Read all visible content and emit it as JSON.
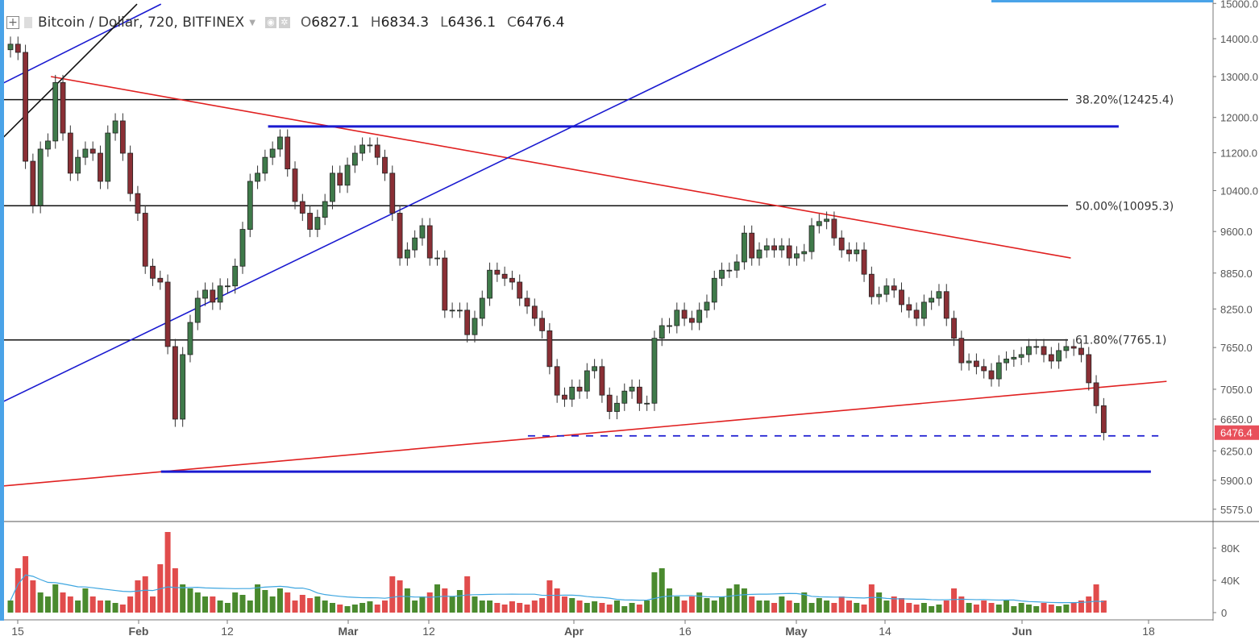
{
  "header": {
    "symbol": "Bitcoin / Dollar, 720, BITFINEX",
    "ohlc": [
      {
        "key": "O",
        "value": "6827.1"
      },
      {
        "key": "H",
        "value": "6834.3"
      },
      {
        "key": "L",
        "value": "6436.1"
      },
      {
        "key": "C",
        "value": "6476.4"
      }
    ],
    "icons": [
      "add-compare-icon",
      "symbol-flag-icon",
      "dropdown-caret-icon",
      "visibility-icon",
      "settings-gear-icon"
    ]
  },
  "chart_data": {
    "type": "candlestick",
    "scale": "log",
    "grid": false,
    "colors": {
      "up": "#3f7a4a",
      "down": "#8a2f35",
      "outline": "#222222",
      "vol_up": "#4a8a2e",
      "vol_down": "#e14c4c",
      "vol_ma": "#3ea6e0",
      "last_price": "#e8505b"
    },
    "candles": {
      "open_first": 13700,
      "close": [
        13850,
        13630,
        11015,
        10100,
        11280,
        11460,
        12850,
        11640,
        10760,
        11100,
        11280,
        11190,
        10590,
        11640,
        11920,
        11190,
        10340,
        9950,
        8970,
        8760,
        8695,
        7665,
        6650,
        7545,
        8035,
        8425,
        8560,
        8360,
        8630,
        8630,
        8970,
        9640,
        10590,
        10760,
        11100,
        11280,
        11550,
        10850,
        10180,
        9950,
        9640,
        9870,
        10180,
        10760,
        10510,
        10930,
        11190,
        11370,
        11370,
        11100,
        10760,
        9950,
        9115,
        9260,
        9480,
        9710,
        9115,
        9115,
        8230,
        8230,
        8230,
        7845,
        8100,
        8425,
        8900,
        8830,
        8760,
        8695,
        8425,
        8295,
        8100,
        7905,
        7370,
        6970,
        6915,
        7080,
        7025,
        7310,
        7370,
        6970,
        6750,
        6860,
        7025,
        7080,
        6860,
        6860,
        7790,
        7985,
        7985,
        8230,
        8100,
        8035,
        8230,
        8360,
        8760,
        8900,
        8900,
        9045,
        9570,
        9115,
        9260,
        9335,
        9260,
        9335,
        9115,
        9190,
        9230,
        9710,
        9790,
        9835,
        9480,
        9260,
        9190,
        9260,
        8830,
        8450,
        8490,
        8630,
        8560,
        8320,
        8230,
        8100,
        8360,
        8425,
        8535,
        8100,
        7790,
        7425,
        7450,
        7370,
        7310,
        7195,
        7425,
        7480,
        7505,
        7545,
        7665,
        7665,
        7545,
        7450,
        7605,
        7665,
        7640,
        7545,
        7140,
        6827,
        6476.4
      ],
      "volume": [
        15000,
        55000,
        70000,
        40000,
        25000,
        20000,
        35000,
        25000,
        20000,
        15000,
        30000,
        20000,
        15000,
        15000,
        12000,
        10000,
        20000,
        40000,
        45000,
        20000,
        60000,
        100000,
        55000,
        35000,
        30000,
        25000,
        20000,
        20000,
        15000,
        12000,
        25000,
        22000,
        15000,
        35000,
        28000,
        20000,
        30000,
        25000,
        15000,
        22000,
        18000,
        20000,
        15000,
        12000,
        10000,
        8000,
        10000,
        12000,
        14000,
        10000,
        15000,
        45000,
        40000,
        30000,
        15000,
        20000,
        25000,
        35000,
        30000,
        20000,
        28000,
        45000,
        20000,
        15000,
        15000,
        12000,
        10000,
        14000,
        12000,
        10000,
        15000,
        18000,
        40000,
        30000,
        20000,
        18000,
        15000,
        12000,
        14000,
        12000,
        10000,
        15000,
        8000,
        12000,
        10000,
        15000,
        50000,
        55000,
        30000,
        20000,
        15000,
        20000,
        25000,
        18000,
        15000,
        20000,
        30000,
        35000,
        30000,
        20000,
        15000,
        15000,
        12000,
        20000,
        15000,
        12000,
        25000,
        12000,
        18000,
        15000,
        12000,
        20000,
        15000,
        12000,
        10000,
        35000,
        25000,
        15000,
        20000,
        18000,
        12000,
        10000,
        12000,
        8000,
        10000,
        15000,
        30000,
        20000,
        12000,
        10000,
        15000,
        12000,
        10000,
        15000,
        8000,
        12000,
        10000,
        8000,
        12000,
        10000,
        8000,
        10000,
        12000,
        15000,
        20000,
        35000,
        15000
      ]
    },
    "last_price_label": "6476.4",
    "price_axis": {
      "ticks": [
        "15000.0",
        "14000.0",
        "13000.0",
        "12000.0",
        "11200.0",
        "10400.0",
        "9600.0",
        "8850.0",
        "8250.0",
        "7650.0",
        "7050.0",
        "6650.0",
        "6250.0",
        "5900.0",
        "5575.0"
      ]
    },
    "volume_axis": {
      "ticks": [
        {
          "value": 80000,
          "label": "80K"
        },
        {
          "value": 40000,
          "label": "40K"
        },
        {
          "value": 0,
          "label": "0"
        }
      ]
    },
    "date_axis": {
      "ticks": [
        {
          "label": "15",
          "bold": false
        },
        {
          "label": "Feb",
          "bold": true
        },
        {
          "label": "12",
          "bold": false
        },
        {
          "label": "Mar",
          "bold": true
        },
        {
          "label": "12",
          "bold": false
        },
        {
          "label": "Apr",
          "bold": true
        },
        {
          "label": "16",
          "bold": false
        },
        {
          "label": "May",
          "bold": true
        },
        {
          "label": "14",
          "bold": false
        },
        {
          "label": "Jun",
          "bold": true
        },
        {
          "label": "18",
          "bold": false
        }
      ]
    },
    "fib_levels": [
      {
        "label": "38.20%(12425.4)",
        "price": 12425.4
      },
      {
        "label": "50.00%(10095.3)",
        "price": 10095.3
      },
      {
        "label": "61.80%(7765.1)",
        "price": 7765.1
      }
    ],
    "drawings": [
      {
        "name": "red-descending-trendline",
        "color": "#e02020",
        "from": [
          5.4,
          13000
        ],
        "to": [
          141.6,
          9115
        ]
      },
      {
        "name": "red-ascending-trendline",
        "color": "#e02020",
        "from": [
          -0.9,
          5835
        ],
        "to": [
          154.4,
          7160
        ]
      },
      {
        "name": "blue-ascending-channel-line",
        "color": "#1a1ad0",
        "from": [
          -0.9,
          6885
        ],
        "to": [
          108.9,
          14980
        ]
      },
      {
        "name": "blue-upper-channel-line",
        "color": "#1a1ad0",
        "from": [
          -0.9,
          12840
        ],
        "to": [
          20.1,
          14980
        ]
      },
      {
        "name": "black-diagonal-line",
        "color": "#111111",
        "from": [
          -0.9,
          11550
        ],
        "to": [
          16.9,
          14980
        ]
      },
      {
        "name": "blue-resistance-line",
        "color": "#1a1ad0",
        "width": 3,
        "from": [
          34.4,
          11790
        ],
        "to": [
          148,
          11790
        ]
      },
      {
        "name": "blue-support-line",
        "color": "#1a1ad0",
        "width": 3,
        "from": [
          20.1,
          6000
        ],
        "to": [
          152.3,
          6000
        ]
      },
      {
        "name": "blue-dashed-support-line",
        "color": "#1a1ad0",
        "dashed": true,
        "from": [
          69.1,
          6436
        ],
        "to": [
          153.3,
          6436
        ]
      }
    ]
  }
}
